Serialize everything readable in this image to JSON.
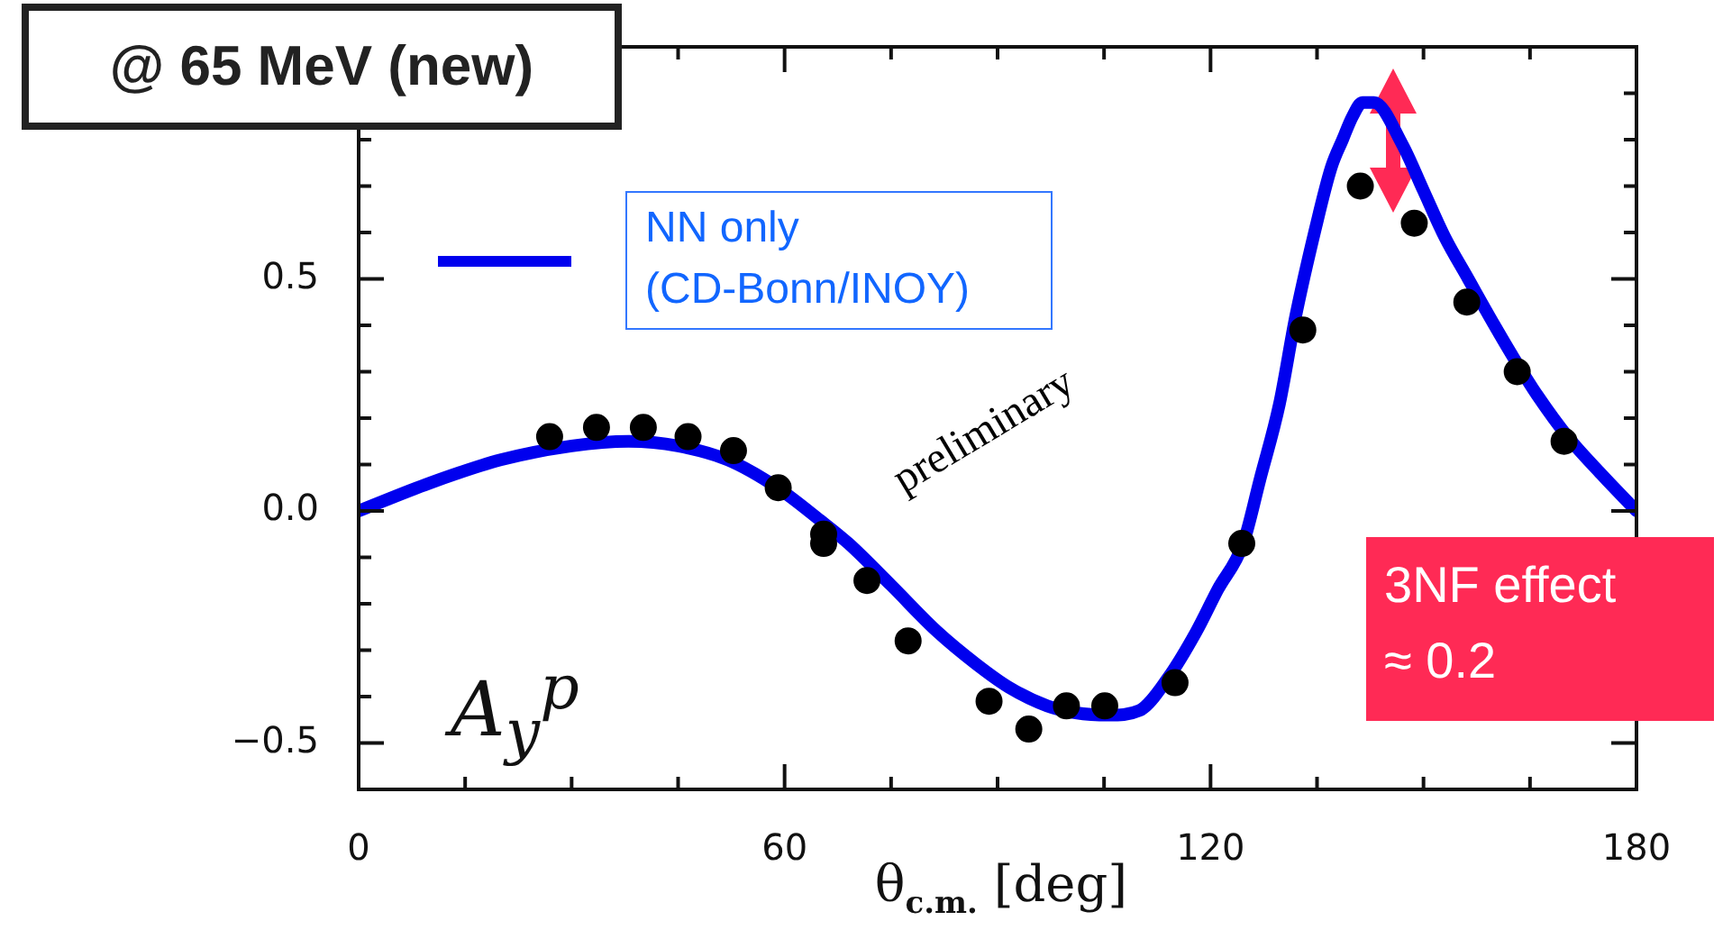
{
  "chart_data": {
    "type": "line",
    "title": "@ 65 MeV (new)",
    "xlabel": "θ$_{c.m.}$ [deg]",
    "ylabel": "A$_{y}$$^{p}$",
    "xlim": [
      0,
      180
    ],
    "ylim": [
      -0.6,
      1.0
    ],
    "xticks": [
      0,
      {
        "value": 15,
        "label": null
      },
      {
        "value": 30,
        "label": null
      },
      {
        "value": 45,
        "label": null
      },
      60,
      {
        "value": 75,
        "label": null
      },
      {
        "value": 90,
        "label": null
      },
      {
        "value": 105,
        "label": null
      },
      120,
      {
        "value": 135,
        "label": null
      },
      {
        "value": 150,
        "label": null
      },
      {
        "value": 165,
        "label": null
      },
      180
    ],
    "yticks": [
      {
        "value": -0.6,
        "label": null
      },
      {
        "value": -0.5,
        "label": "−0.5"
      },
      {
        "value": -0.4,
        "label": null
      },
      {
        "value": -0.3,
        "label": null
      },
      {
        "value": -0.2,
        "label": null
      },
      {
        "value": -0.1,
        "label": null
      },
      {
        "value": 0,
        "label": "0.0"
      },
      {
        "value": 0.1,
        "label": null
      },
      {
        "value": 0.2,
        "label": null
      },
      {
        "value": 0.3,
        "label": null
      },
      {
        "value": 0.4,
        "label": null
      },
      {
        "value": 0.5,
        "label": "0.5"
      },
      {
        "value": 0.6,
        "label": null
      },
      {
        "value": 0.7,
        "label": null
      },
      {
        "value": 0.8,
        "label": null
      },
      {
        "value": 0.9,
        "label": null
      }
    ],
    "grid": false,
    "legend": "top left",
    "series": [
      {
        "name": "NN only (CD-Bonn/INOY)",
        "type": "line",
        "color": "#0000ee",
        "marker": "none",
        "line_style": "solid",
        "x": [
          0,
          10,
          20,
          30,
          38,
          45,
          52,
          59,
          65,
          69,
          75,
          81.5,
          87,
          91.6,
          97,
          101,
          105.6,
          110,
          114,
          118,
          121,
          124.6,
          127,
          129.7,
          132,
          134.8,
          137,
          138.6,
          140,
          141.4,
          143,
          147,
          150,
          153,
          156.3,
          160,
          162.7,
          166,
          170.3,
          175,
          180
        ],
        "values": [
          0,
          0.06,
          0.11,
          0.14,
          0.15,
          0.14,
          0.11,
          0.05,
          -0.02,
          -0.07,
          -0.16,
          -0.26,
          -0.33,
          -0.38,
          -0.42,
          -0.435,
          -0.44,
          -0.43,
          -0.36,
          -0.26,
          -0.17,
          -0.07,
          0.07,
          0.23,
          0.42,
          0.61,
          0.74,
          0.8,
          0.85,
          0.88,
          0.88,
          0.79,
          0.69,
          0.59,
          0.5,
          0.4,
          0.33,
          0.25,
          0.16,
          0.08,
          0
        ]
      },
      {
        "type": "scatter",
        "color": "#000000",
        "marker": "circle",
        "x": [
          26.9,
          33.5,
          40.1,
          46.4,
          52.8,
          59.1,
          65.5,
          65.5,
          71.6,
          77.4,
          88.8,
          94.4,
          99.7,
          105.1,
          115.0,
          124.4,
          133.0,
          141.1,
          148.7,
          156.1,
          163.2,
          169.8
        ],
        "values": [
          0.16,
          0.18,
          0.18,
          0.16,
          0.13,
          0.05,
          -0.05,
          -0.07,
          -0.15,
          -0.28,
          -0.41,
          -0.47,
          -0.42,
          -0.42,
          -0.37,
          -0.07,
          0.39,
          0.7,
          0.62,
          0.45,
          0.3,
          0.15
        ]
      }
    ],
    "annotations": [
      "preliminary",
      "3NF effect\n≈ 0.2"
    ]
  }
}
